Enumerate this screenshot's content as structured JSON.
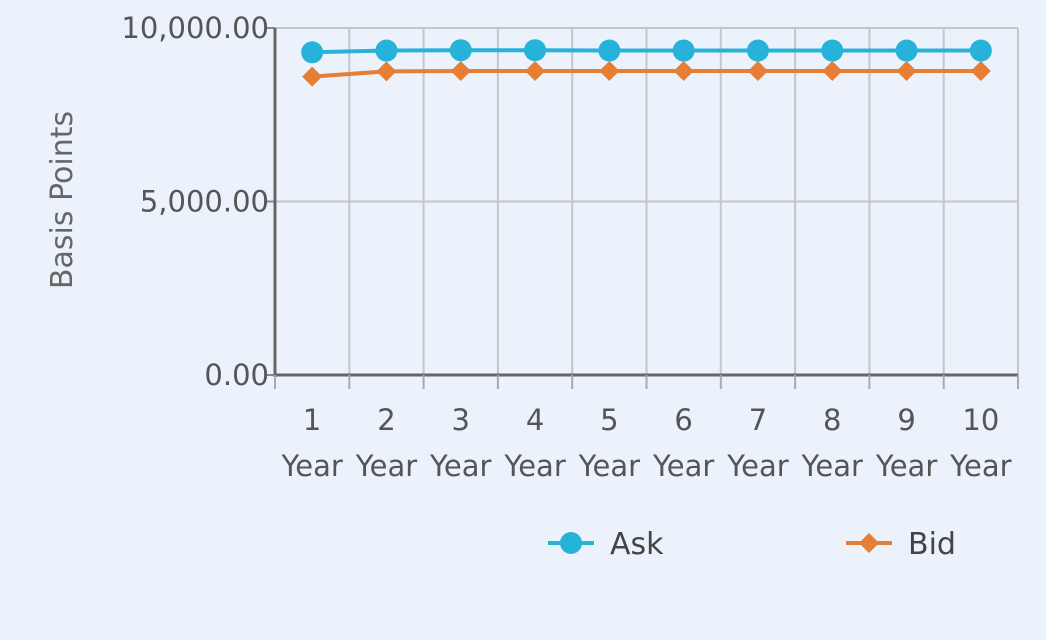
{
  "chart_data": {
    "type": "line",
    "title": "",
    "ylabel": "Basis Points",
    "xlabel": "",
    "categories": [
      [
        "1",
        "Year"
      ],
      [
        "2",
        "Year"
      ],
      [
        "3",
        "Year"
      ],
      [
        "4",
        "Year"
      ],
      [
        "5",
        "Year"
      ],
      [
        "6",
        "Year"
      ],
      [
        "7",
        "Year"
      ],
      [
        "8",
        "Year"
      ],
      [
        "9",
        "Year"
      ],
      [
        "10",
        "Year"
      ]
    ],
    "ylim": [
      0,
      10000
    ],
    "yticks": [
      {
        "value": 0,
        "label": "0.00"
      },
      {
        "value": 5000,
        "label": "5,000.00"
      },
      {
        "value": 10000,
        "label": "10,000.00"
      }
    ],
    "grid": true,
    "legend_position": "bottom",
    "series": [
      {
        "name": "Ask",
        "color": "#27b2d9",
        "marker": "circle",
        "values": [
          9300,
          9350,
          9360,
          9360,
          9350,
          9350,
          9350,
          9350,
          9350,
          9350
        ]
      },
      {
        "name": "Bid",
        "color": "#e67e36",
        "marker": "diamond",
        "values": [
          8600,
          8750,
          8760,
          8760,
          8760,
          8760,
          8760,
          8760,
          8760,
          8760
        ]
      }
    ]
  }
}
